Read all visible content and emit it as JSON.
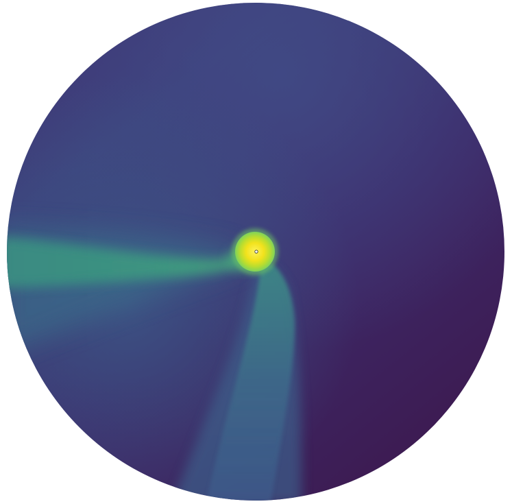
{
  "figure": {
    "kind": "polar-density-map",
    "colormap": "viridis",
    "colors": {
      "background": "#ffffff",
      "disk_dark": "#3d1c52",
      "disk_mid": "#3c3f7c",
      "disk_light": "#424a87",
      "stream": "#3a8c84",
      "stream_bright": "#41a07e",
      "core_outer": "#7fd35b",
      "core": "#f4e21a",
      "core_center": "#fdf35a",
      "marker": "#2b2b2b"
    }
  }
}
